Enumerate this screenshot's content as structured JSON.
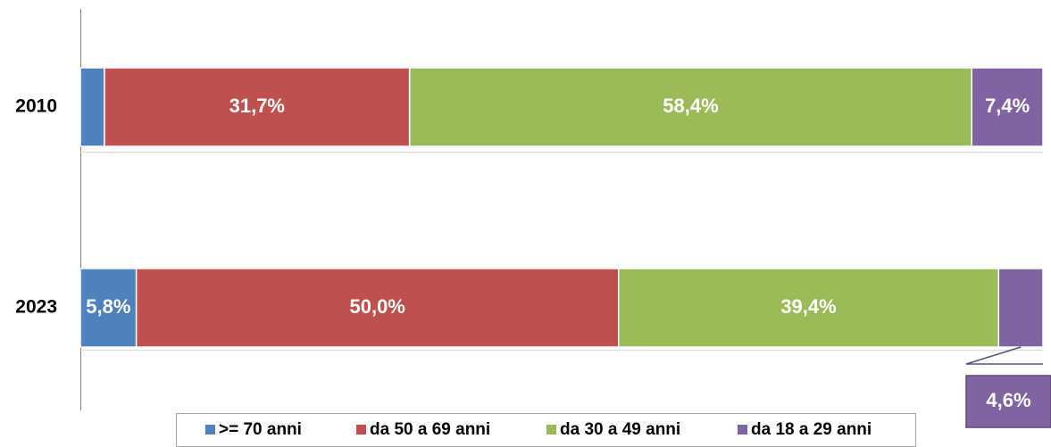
{
  "chart_data": {
    "type": "bar",
    "orientation": "horizontal",
    "stacked": "percent",
    "categories": [
      "2010",
      "2023"
    ],
    "series": [
      {
        "name": ">= 70 anni",
        "color": "#4F81BD",
        "values": [
          2.5,
          5.8
        ],
        "labels": [
          "",
          "5,8%"
        ]
      },
      {
        "name": "da 50 a 69 anni",
        "color": "#C0504D",
        "values": [
          31.7,
          50.0
        ],
        "labels": [
          "31,7%",
          "50,0%"
        ]
      },
      {
        "name": "da 30 a 49 anni",
        "color": "#9BBB59",
        "values": [
          58.4,
          39.4
        ],
        "labels": [
          "58,4%",
          "39,4%"
        ]
      },
      {
        "name": "da 18 a 29 anni",
        "color": "#8064A2",
        "values": [
          7.4,
          4.6
        ],
        "labels": [
          "7,4%",
          "4,6%"
        ]
      }
    ],
    "legend_position": "bottom",
    "grid": false
  }
}
